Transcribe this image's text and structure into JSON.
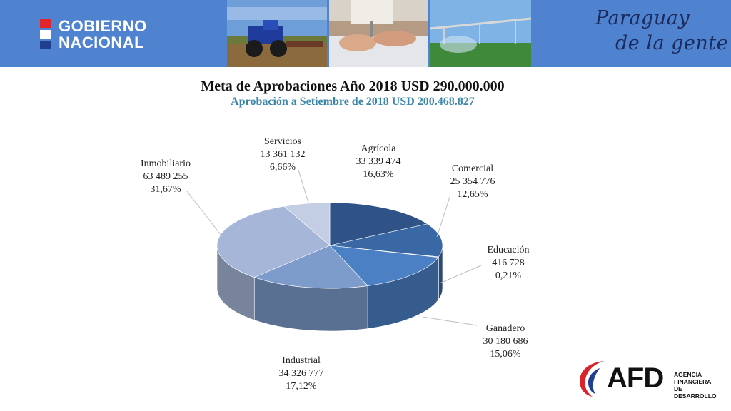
{
  "header": {
    "gov_line1": "GOBIERNO",
    "gov_line2": "NACIONAL",
    "slogan_line1": "Paraguay",
    "slogan_line2": "de la gente",
    "band_color": "#4f83cf"
  },
  "footer": {
    "afd_name": "AFD",
    "afd_line1": "AGENCIA",
    "afd_line2": "FINANCIERA",
    "afd_line3": "DE DESARROLLO"
  },
  "chart_data": {
    "type": "pie",
    "title": "Meta de Aprobaciones Año 2018 USD 290.000.000",
    "subtitle": "Aprobación a Setiembre de 2018 USD  200.468.827",
    "slices": [
      {
        "name": "Agrícola",
        "amount": "33 339 474",
        "percent_label": "16,63%",
        "value": 16.63,
        "color": "#2f5386"
      },
      {
        "name": "Comercial",
        "amount": "25 354 776",
        "percent_label": "12,65%",
        "value": 12.65,
        "color": "#3a68a4"
      },
      {
        "name": "Educación",
        "amount": "416 728",
        "percent_label": "0,21%",
        "value": 0.21,
        "color": "#4173b5"
      },
      {
        "name": "Ganadero",
        "amount": "30 180 686",
        "percent_label": "15,06%",
        "value": 15.06,
        "color": "#4b80c4"
      },
      {
        "name": "Industrial",
        "amount": "34 326 777",
        "percent_label": "17,12%",
        "value": 17.12,
        "color": "#7d9bcb"
      },
      {
        "name": "Inmobiliario",
        "amount": "63 489 255",
        "percent_label": "31,67%",
        "value": 31.67,
        "color": "#a6b6d8"
      },
      {
        "name": "Servicios",
        "amount": "13 361 132",
        "percent_label": "6,66%",
        "value": 6.66,
        "color": "#c3cde3"
      }
    ]
  }
}
